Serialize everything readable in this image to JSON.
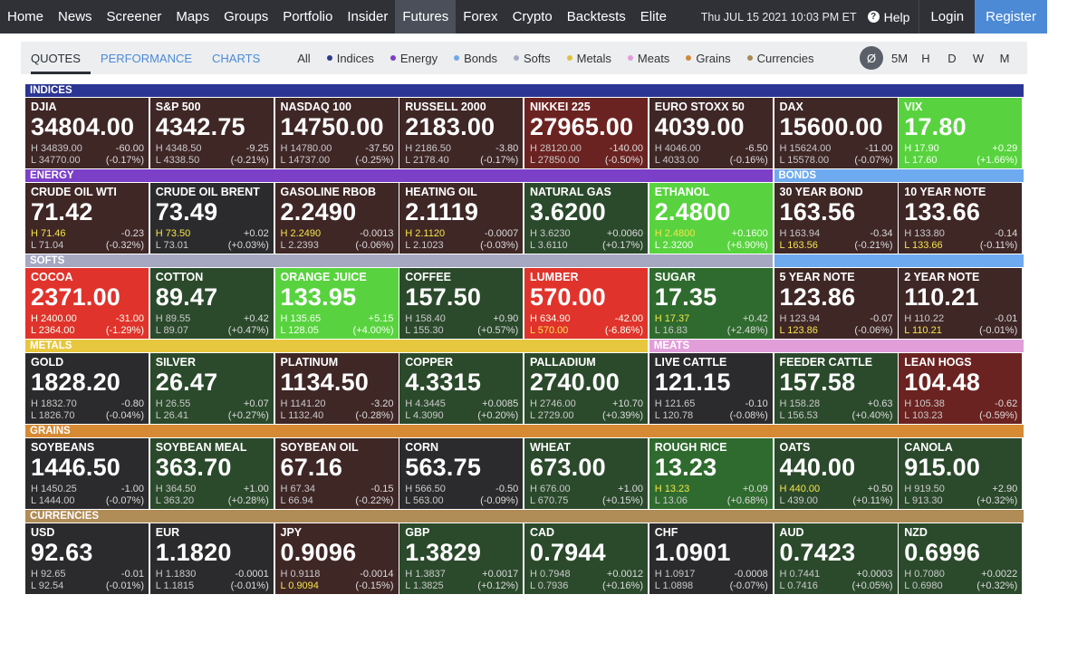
{
  "nav": {
    "items": [
      {
        "label": "Home",
        "active": false
      },
      {
        "label": "News",
        "active": false
      },
      {
        "label": "Screener",
        "active": false
      },
      {
        "label": "Maps",
        "active": false
      },
      {
        "label": "Groups",
        "active": false
      },
      {
        "label": "Portfolio",
        "active": false
      },
      {
        "label": "Insider",
        "active": false
      },
      {
        "label": "Futures",
        "active": true
      },
      {
        "label": "Forex",
        "active": false
      },
      {
        "label": "Crypto",
        "active": false
      },
      {
        "label": "Backtests",
        "active": false
      },
      {
        "label": "Elite",
        "active": false
      }
    ],
    "datetime": "Thu JUL 15 2021 10:03 PM ET",
    "help": "Help",
    "login": "Login",
    "register": "Register"
  },
  "subbar": {
    "tabs": [
      {
        "label": "QUOTES",
        "active": true
      },
      {
        "label": "PERFORMANCE",
        "active": false
      },
      {
        "label": "CHARTS",
        "active": false
      }
    ],
    "filters": [
      {
        "label": "All",
        "dot": ""
      },
      {
        "label": "Indices",
        "dot": "#2b3a8c"
      },
      {
        "label": "Energy",
        "dot": "#7a3fc4"
      },
      {
        "label": "Bonds",
        "dot": "#6fa8e6"
      },
      {
        "label": "Softs",
        "dot": "#a7a9c2"
      },
      {
        "label": "Metals",
        "dot": "#e0c23a"
      },
      {
        "label": "Meats",
        "dot": "#e59be0"
      },
      {
        "label": "Grains",
        "dot": "#d08a3c"
      },
      {
        "label": "Currencies",
        "dot": "#a98a54"
      }
    ],
    "timeframes": [
      {
        "label": "Ø",
        "active": true
      },
      {
        "label": "5M",
        "active": false
      },
      {
        "label": "H",
        "active": false
      },
      {
        "label": "D",
        "active": false
      },
      {
        "label": "W",
        "active": false
      },
      {
        "label": "M",
        "active": false
      }
    ]
  },
  "colors": {
    "indices": "#2b3593",
    "energy": "#7b3fc8",
    "bonds": "#6eaaf0",
    "softs": "#a6a8c1",
    "metals": "#e7c73e",
    "meats": "#e19ed9",
    "grains": "#d68a34",
    "currencies": "#b08c56",
    "strong_red": "#e0332c",
    "mid_red": "#6b2321",
    "dark_red": "#3f2726",
    "neutral": "#2b2b2d",
    "dark_green": "#2b4a2c",
    "mid_green": "#2f6b2e",
    "strong_green": "#58d33f"
  },
  "rows": [
    {
      "headers": [
        {
          "label": "INDICES",
          "group": "indices",
          "span": 8
        }
      ],
      "tiles": [
        {
          "name": "DJIA",
          "price": "34804.00",
          "high": "H  34839.00",
          "low": "L  34770.00",
          "change": "-60.00",
          "pct": "(-0.17%)",
          "shade": "dark_red",
          "hl": ""
        },
        {
          "name": "S&P 500",
          "price": "4342.75",
          "high": "H  4348.50",
          "low": "L  4338.50",
          "change": "-9.25",
          "pct": "(-0.21%)",
          "shade": "dark_red",
          "hl": ""
        },
        {
          "name": "NASDAQ 100",
          "price": "14750.00",
          "high": "H  14780.00",
          "low": "L  14737.00",
          "change": "-37.50",
          "pct": "(-0.25%)",
          "shade": "dark_red",
          "hl": ""
        },
        {
          "name": "RUSSELL 2000",
          "price": "2183.00",
          "high": "H  2186.50",
          "low": "L  2178.40",
          "change": "-3.80",
          "pct": "(-0.17%)",
          "shade": "dark_red",
          "hl": ""
        },
        {
          "name": "NIKKEI 225",
          "price": "27965.00",
          "high": "H  28120.00",
          "low": "L  27850.00",
          "change": "-140.00",
          "pct": "(-0.50%)",
          "shade": "mid_red",
          "hl": ""
        },
        {
          "name": "EURO STOXX 50",
          "price": "4039.00",
          "high": "H  4046.00",
          "low": "L  4033.00",
          "change": "-6.50",
          "pct": "(-0.16%)",
          "shade": "dark_red",
          "hl": ""
        },
        {
          "name": "DAX",
          "price": "15600.00",
          "high": "H  15624.00",
          "low": "L  15578.00",
          "change": "-11.00",
          "pct": "(-0.07%)",
          "shade": "dark_red",
          "hl": ""
        },
        {
          "name": "VIX",
          "price": "17.80",
          "high": "H  17.90",
          "low": "L  17.60",
          "change": "+0.29",
          "pct": "(+1.66%)",
          "shade": "strong_green",
          "hl": ""
        }
      ]
    },
    {
      "headers": [
        {
          "label": "ENERGY",
          "group": "energy",
          "span": 6
        },
        {
          "label": "BONDS",
          "group": "bonds",
          "span": 2
        }
      ],
      "tiles": [
        {
          "name": "CRUDE OIL WTI",
          "price": "71.42",
          "high": "H  71.46",
          "low": "L  71.04",
          "change": "-0.23",
          "pct": "(-0.32%)",
          "shade": "dark_red",
          "hl": "high"
        },
        {
          "name": "CRUDE OIL BRENT",
          "price": "73.49",
          "high": "H  73.50",
          "low": "L  73.01",
          "change": "+0.02",
          "pct": "(+0.03%)",
          "shade": "neutral",
          "hl": "high"
        },
        {
          "name": "GASOLINE RBOB",
          "price": "2.2490",
          "high": "H  2.2490",
          "low": "L  2.2393",
          "change": "-0.0013",
          "pct": "(-0.06%)",
          "shade": "dark_red",
          "hl": "high"
        },
        {
          "name": "HEATING OIL",
          "price": "2.1119",
          "high": "H  2.1120",
          "low": "L  2.1023",
          "change": "-0.0007",
          "pct": "(-0.03%)",
          "shade": "dark_red",
          "hl": "high"
        },
        {
          "name": "NATURAL GAS",
          "price": "3.6200",
          "high": "H  3.6230",
          "low": "L  3.6110",
          "change": "+0.0060",
          "pct": "(+0.17%)",
          "shade": "dark_green",
          "hl": ""
        },
        {
          "name": "ETHANOL",
          "price": "2.4800",
          "high": "H  2.4800",
          "low": "L  2.3200",
          "change": "+0.1600",
          "pct": "(+6.90%)",
          "shade": "strong_green",
          "hl": "high"
        },
        {
          "name": "30 YEAR BOND",
          "price": "163.56",
          "high": "H  163.94",
          "low": "L  163.56",
          "change": "-0.34",
          "pct": "(-0.21%)",
          "shade": "dark_red",
          "hl": "low"
        },
        {
          "name": "10 YEAR NOTE",
          "price": "133.66",
          "high": "H  133.80",
          "low": "L  133.66",
          "change": "-0.14",
          "pct": "(-0.11%)",
          "shade": "dark_red",
          "hl": "low"
        }
      ]
    },
    {
      "headers": [
        {
          "label": "SOFTS",
          "group": "softs",
          "span": 6
        },
        {
          "label": "",
          "group": "bonds",
          "span": 2
        }
      ],
      "tiles": [
        {
          "name": "COCOA",
          "price": "2371.00",
          "high": "H  2400.00",
          "low": "L  2364.00",
          "change": "-31.00",
          "pct": "(-1.29%)",
          "shade": "strong_red",
          "hl": ""
        },
        {
          "name": "COTTON",
          "price": "89.47",
          "high": "H  89.55",
          "low": "L  89.07",
          "change": "+0.42",
          "pct": "(+0.47%)",
          "shade": "dark_green",
          "hl": ""
        },
        {
          "name": "ORANGE JUICE",
          "price": "133.95",
          "high": "H  135.65",
          "low": "L  128.05",
          "change": "+5.15",
          "pct": "(+4.00%)",
          "shade": "strong_green",
          "hl": ""
        },
        {
          "name": "COFFEE",
          "price": "157.50",
          "high": "H  158.40",
          "low": "L  155.30",
          "change": "+0.90",
          "pct": "(+0.57%)",
          "shade": "dark_green",
          "hl": ""
        },
        {
          "name": "LUMBER",
          "price": "570.00",
          "high": "H  634.90",
          "low": "L  570.00",
          "change": "-42.00",
          "pct": "(-6.86%)",
          "shade": "strong_red",
          "hl": "low"
        },
        {
          "name": "SUGAR",
          "price": "17.35",
          "high": "H  17.37",
          "low": "L  16.83",
          "change": "+0.42",
          "pct": "(+2.48%)",
          "shade": "mid_green",
          "hl": "high"
        },
        {
          "name": "5 YEAR NOTE",
          "price": "123.86",
          "high": "H  123.94",
          "low": "L  123.86",
          "change": "-0.07",
          "pct": "(-0.06%)",
          "shade": "dark_red",
          "hl": "low"
        },
        {
          "name": "2 YEAR NOTE",
          "price": "110.21",
          "high": "H  110.22",
          "low": "L  110.21",
          "change": "-0.01",
          "pct": "(-0.01%)",
          "shade": "dark_red",
          "hl": "low"
        }
      ]
    },
    {
      "headers": [
        {
          "label": "METALS",
          "group": "metals",
          "span": 5
        },
        {
          "label": "MEATS",
          "group": "meats",
          "span": 3
        }
      ],
      "tiles": [
        {
          "name": "GOLD",
          "price": "1828.20",
          "high": "H  1832.70",
          "low": "L  1826.70",
          "change": "-0.80",
          "pct": "(-0.04%)",
          "shade": "neutral",
          "hl": ""
        },
        {
          "name": "SILVER",
          "price": "26.47",
          "high": "H  26.55",
          "low": "L  26.41",
          "change": "+0.07",
          "pct": "(+0.27%)",
          "shade": "dark_green",
          "hl": ""
        },
        {
          "name": "PLATINUM",
          "price": "1134.50",
          "high": "H  1141.20",
          "low": "L  1132.40",
          "change": "-3.20",
          "pct": "(-0.28%)",
          "shade": "dark_red",
          "hl": ""
        },
        {
          "name": "COPPER",
          "price": "4.3315",
          "high": "H  4.3445",
          "low": "L  4.3090",
          "change": "+0.0085",
          "pct": "(+0.20%)",
          "shade": "dark_green",
          "hl": ""
        },
        {
          "name": "PALLADIUM",
          "price": "2740.00",
          "high": "H  2746.00",
          "low": "L  2729.00",
          "change": "+10.70",
          "pct": "(+0.39%)",
          "shade": "dark_green",
          "hl": ""
        },
        {
          "name": "LIVE CATTLE",
          "price": "121.15",
          "high": "H  121.65",
          "low": "L  120.78",
          "change": "-0.10",
          "pct": "(-0.08%)",
          "shade": "neutral",
          "hl": ""
        },
        {
          "name": "FEEDER CATTLE",
          "price": "157.58",
          "high": "H  158.28",
          "low": "L  156.53",
          "change": "+0.63",
          "pct": "(+0.40%)",
          "shade": "dark_green",
          "hl": ""
        },
        {
          "name": "LEAN HOGS",
          "price": "104.48",
          "high": "H  105.38",
          "low": "L  103.23",
          "change": "-0.62",
          "pct": "(-0.59%)",
          "shade": "mid_red",
          "hl": ""
        }
      ]
    },
    {
      "headers": [
        {
          "label": "GRAINS",
          "group": "grains",
          "span": 8
        }
      ],
      "tiles": [
        {
          "name": "SOYBEANS",
          "price": "1446.50",
          "high": "H  1450.25",
          "low": "L  1444.00",
          "change": "-1.00",
          "pct": "(-0.07%)",
          "shade": "neutral",
          "hl": ""
        },
        {
          "name": "SOYBEAN MEAL",
          "price": "363.70",
          "high": "H  364.50",
          "low": "L  363.20",
          "change": "+1.00",
          "pct": "(+0.28%)",
          "shade": "dark_green",
          "hl": ""
        },
        {
          "name": "SOYBEAN OIL",
          "price": "67.16",
          "high": "H  67.34",
          "low": "L  66.94",
          "change": "-0.15",
          "pct": "(-0.22%)",
          "shade": "dark_red",
          "hl": ""
        },
        {
          "name": "CORN",
          "price": "563.75",
          "high": "H  566.50",
          "low": "L  563.00",
          "change": "-0.50",
          "pct": "(-0.09%)",
          "shade": "neutral",
          "hl": ""
        },
        {
          "name": "WHEAT",
          "price": "673.00",
          "high": "H  676.00",
          "low": "L  670.75",
          "change": "+1.00",
          "pct": "(+0.15%)",
          "shade": "dark_green",
          "hl": ""
        },
        {
          "name": "ROUGH RICE",
          "price": "13.23",
          "high": "H  13.23",
          "low": "L  13.06",
          "change": "+0.09",
          "pct": "(+0.68%)",
          "shade": "mid_green",
          "hl": "high"
        },
        {
          "name": "OATS",
          "price": "440.00",
          "high": "H  440.00",
          "low": "L  439.00",
          "change": "+0.50",
          "pct": "(+0.11%)",
          "shade": "dark_green",
          "hl": "high"
        },
        {
          "name": "CANOLA",
          "price": "915.00",
          "high": "H  919.50",
          "low": "L  913.30",
          "change": "+2.90",
          "pct": "(+0.32%)",
          "shade": "dark_green",
          "hl": ""
        }
      ]
    },
    {
      "headers": [
        {
          "label": "CURRENCIES",
          "group": "currencies",
          "span": 8
        }
      ],
      "tiles": [
        {
          "name": "USD",
          "price": "92.63",
          "high": "H  92.65",
          "low": "L  92.54",
          "change": "-0.01",
          "pct": "(-0.01%)",
          "shade": "neutral",
          "hl": ""
        },
        {
          "name": "EUR",
          "price": "1.1820",
          "high": "H  1.1830",
          "low": "L  1.1815",
          "change": "-0.0001",
          "pct": "(-0.01%)",
          "shade": "neutral",
          "hl": ""
        },
        {
          "name": "JPY",
          "price": "0.9096",
          "high": "H  0.9118",
          "low": "L  0.9094",
          "change": "-0.0014",
          "pct": "(-0.15%)",
          "shade": "dark_red",
          "hl": "low"
        },
        {
          "name": "GBP",
          "price": "1.3829",
          "high": "H  1.3837",
          "low": "L  1.3825",
          "change": "+0.0017",
          "pct": "(+0.12%)",
          "shade": "dark_green",
          "hl": ""
        },
        {
          "name": "CAD",
          "price": "0.7944",
          "high": "H  0.7948",
          "low": "L  0.7936",
          "change": "+0.0012",
          "pct": "(+0.16%)",
          "shade": "dark_green",
          "hl": ""
        },
        {
          "name": "CHF",
          "price": "1.0901",
          "high": "H  1.0917",
          "low": "L  1.0898",
          "change": "-0.0008",
          "pct": "(-0.07%)",
          "shade": "neutral",
          "hl": ""
        },
        {
          "name": "AUD",
          "price": "0.7423",
          "high": "H  0.7441",
          "low": "L  0.7416",
          "change": "+0.0003",
          "pct": "(+0.05%)",
          "shade": "dark_green",
          "hl": ""
        },
        {
          "name": "NZD",
          "price": "0.6996",
          "high": "H  0.7080",
          "low": "L  0.6980",
          "change": "+0.0022",
          "pct": "(+0.32%)",
          "shade": "dark_green",
          "hl": ""
        }
      ]
    }
  ]
}
